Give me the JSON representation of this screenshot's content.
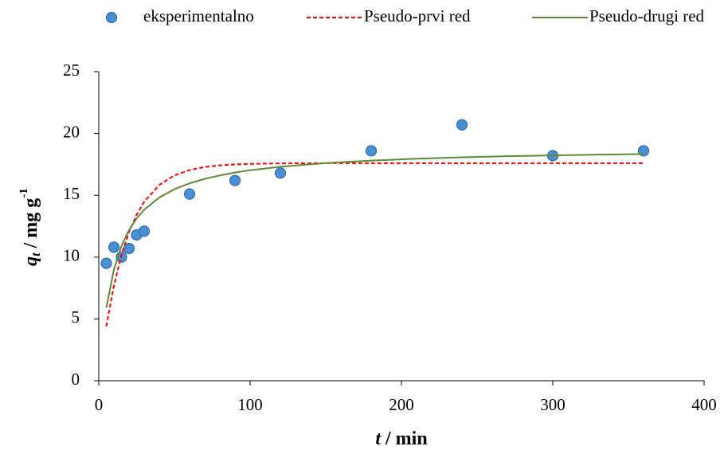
{
  "chart_data": {
    "type": "scatter",
    "xlabel": {
      "symbol": "t",
      "unit": "/ min"
    },
    "ylabel": {
      "symbol": "q",
      "subscript": "t",
      "unit": "/ mg g",
      "superscript": "-1"
    },
    "xlim": [
      0,
      400
    ],
    "xticks": [
      0,
      100,
      200,
      300,
      400
    ],
    "ylim": [
      0,
      25
    ],
    "yticks": [
      0,
      5,
      10,
      15,
      20,
      25
    ],
    "series": [
      {
        "name": "eksperimentalno",
        "style": "marker",
        "color": "#4a8fd4",
        "x": [
          5,
          10,
          15,
          20,
          25,
          30,
          60,
          90,
          120,
          180,
          240,
          300,
          360
        ],
        "values": [
          9.5,
          10.8,
          10,
          10.7,
          11.8,
          12.1,
          15.1,
          16.2,
          16.8,
          18.6,
          20.7,
          18.2,
          18.6
        ]
      },
      {
        "name": "Pseudo-prvi red",
        "style": "dashed",
        "color": "#ff0000",
        "x": [
          5,
          10,
          15,
          20,
          25,
          30,
          40,
          50,
          60,
          70,
          80,
          90,
          100,
          120,
          150,
          200,
          250,
          300,
          360
        ],
        "values": [
          4.4,
          7.7,
          10.17,
          12.03,
          13.42,
          14.47,
          15.84,
          16.61,
          17.04,
          17.29,
          17.42,
          17.5,
          17.54,
          17.58,
          17.6,
          17.6,
          17.6,
          17.6,
          17.6
        ]
      },
      {
        "name": "Pseudo-drugi red",
        "style": "solid",
        "color": "#5b8c32",
        "x": [
          5,
          10,
          15,
          20,
          25,
          30,
          40,
          50,
          60,
          70,
          80,
          90,
          100,
          120,
          150,
          180,
          210,
          240,
          270,
          300,
          330,
          360
        ],
        "values": [
          5.91,
          9,
          10.9,
          12.19,
          13.13,
          13.83,
          14.82,
          15.49,
          15.97,
          16.33,
          16.61,
          16.84,
          17.03,
          17.31,
          17.61,
          17.81,
          17.96,
          18.07,
          18.16,
          18.23,
          18.29,
          18.34
        ]
      }
    ]
  }
}
